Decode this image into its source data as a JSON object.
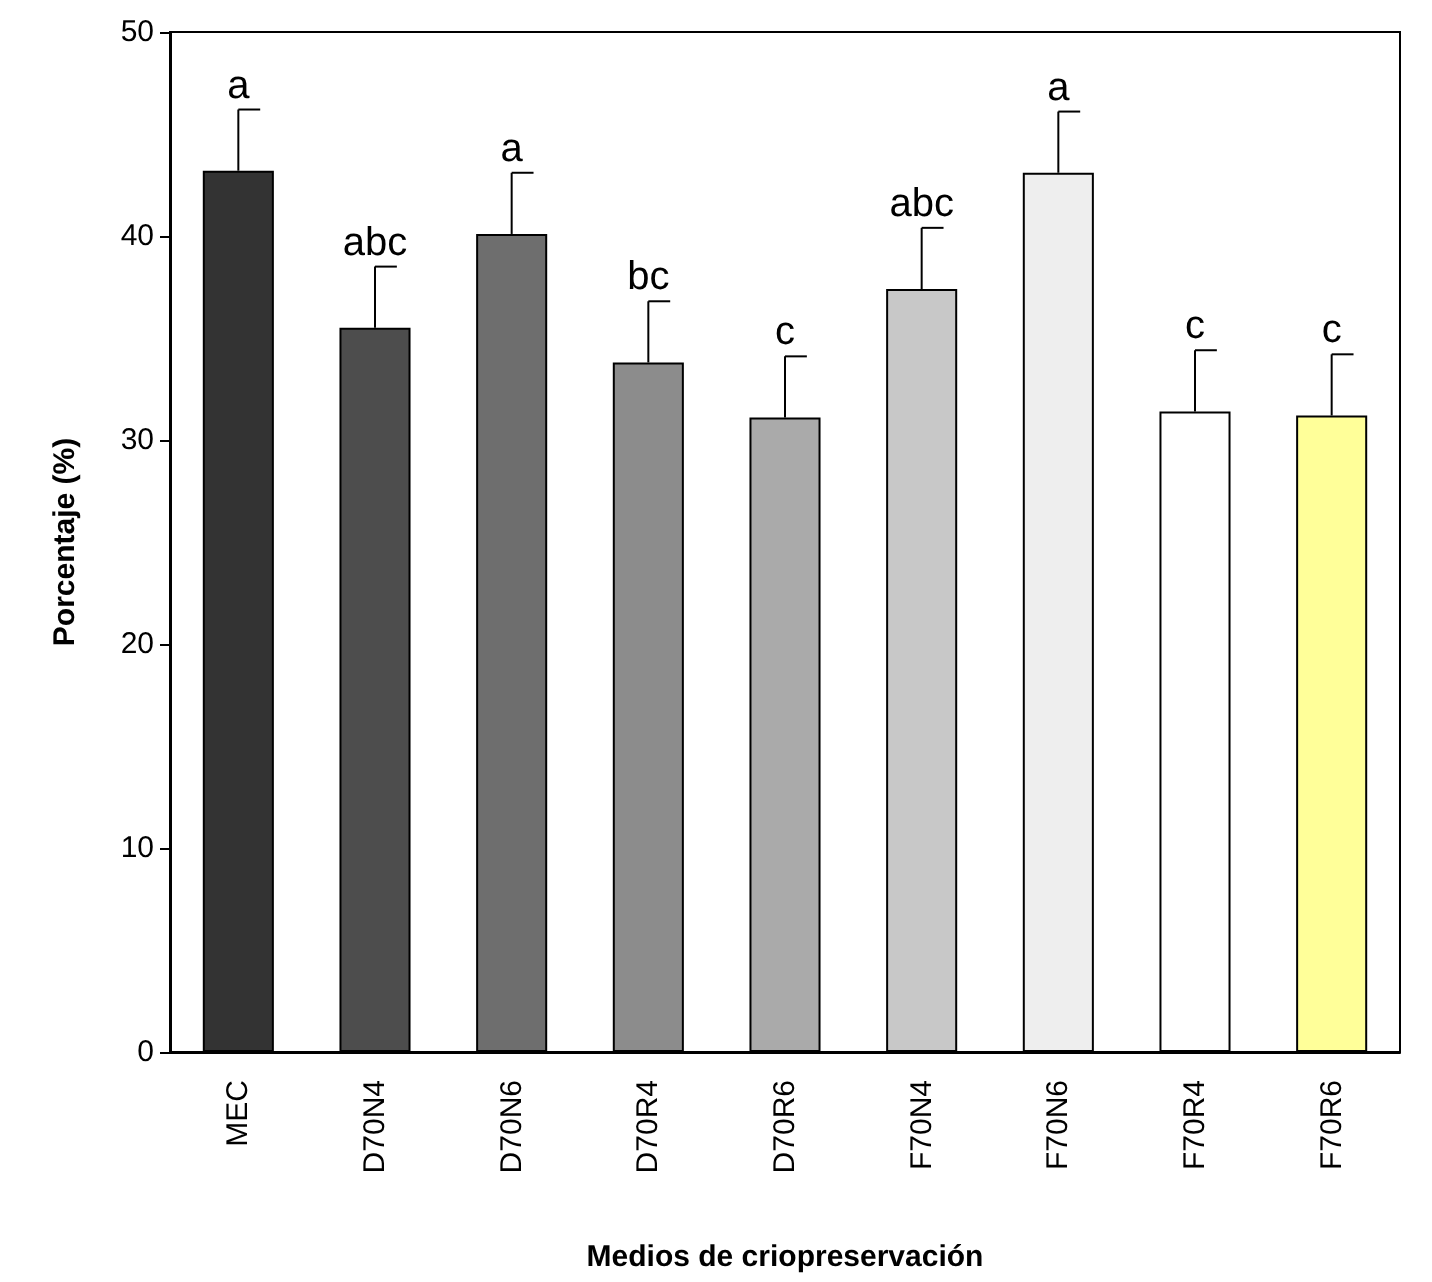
{
  "chart_data": {
    "type": "bar",
    "xlabel": "Medios de criopreservación",
    "ylabel": "Porcentaje (%)",
    "categories": [
      "MEC",
      "D70N4",
      "D70N6",
      "D70R4",
      "D70R6",
      "F70N4",
      "F70N6",
      "F70R4",
      "F70R6"
    ],
    "values": [
      43.2,
      35.5,
      40.1,
      33.8,
      31.1,
      37.4,
      43.1,
      31.4,
      31.2
    ],
    "colors": [
      "#333333",
      "#4d4d4d",
      "#6e6e6e",
      "#8c8c8c",
      "#aaaaaa",
      "#c8c8c8",
      "#eeeeee",
      "#ffffff",
      "#ffff99"
    ],
    "errors": [
      [
        43.2,
        46.2
      ],
      [
        35.5,
        38.5
      ],
      [
        40.1,
        43.1
      ],
      [
        33.8,
        36.8
      ],
      [
        31.1,
        34.1
      ],
      [
        37.4,
        40.4
      ],
      [
        43.1,
        46.1
      ],
      [
        31.4,
        34.4
      ],
      [
        31.2,
        34.2
      ]
    ],
    "annotations": [
      {
        "text": "a",
        "x": "MEC",
        "y": 46.2
      },
      {
        "text": "abc",
        "x": "D70N4",
        "y": 38.5
      },
      {
        "text": "a",
        "x": "D70N6",
        "y": 43.1
      },
      {
        "text": "bc",
        "x": "D70R4",
        "y": 36.8
      },
      {
        "text": "c",
        "x": "D70R6",
        "y": 34.1
      },
      {
        "text": "abc",
        "x": "F70N4",
        "y": 40.4
      },
      {
        "text": "a",
        "x": "F70N6",
        "y": 46.1
      },
      {
        "text": "c",
        "x": "F70R4",
        "y": 34.4
      },
      {
        "text": "c",
        "x": "F70R6",
        "y": 34.2
      }
    ],
    "ylim": [
      0,
      50
    ],
    "yticks": [
      0,
      10,
      20,
      30,
      40,
      50
    ],
    "grid": false
  }
}
